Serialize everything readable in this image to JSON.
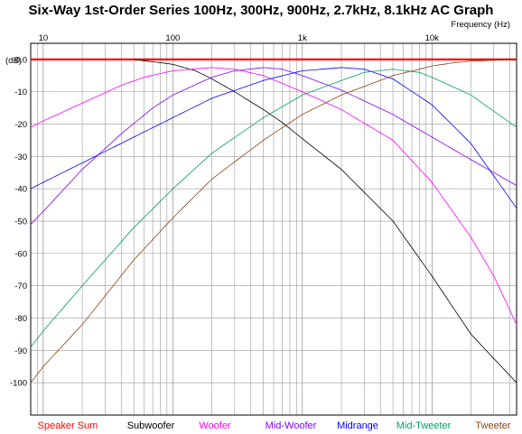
{
  "chart_data": {
    "type": "line",
    "title": "Six-Way 1st-Order Series 100Hz, 300Hz, 900Hz, 2.7kHz, 8.1kHz AC Graph",
    "xlabel": "Frequency   (Hz)",
    "ylabel": "(dB)",
    "x_scale": "log",
    "xlim": [
      8,
      45000
    ],
    "ylim": [
      -110,
      5
    ],
    "grid": true,
    "legend_position": "bottom",
    "x_ticks": [
      {
        "value": 10,
        "label": "10"
      },
      {
        "value": 100,
        "label": "100"
      },
      {
        "value": 1000,
        "label": "1k"
      },
      {
        "value": 10000,
        "label": "10k"
      }
    ],
    "y_ticks": [
      {
        "value": 0,
        "label": "0.0"
      },
      {
        "value": -10,
        "label": "-10"
      },
      {
        "value": -20,
        "label": "-20"
      },
      {
        "value": -30,
        "label": "-30"
      },
      {
        "value": -40,
        "label": "-40"
      },
      {
        "value": -50,
        "label": "-50"
      },
      {
        "value": -60,
        "label": "-60"
      },
      {
        "value": -70,
        "label": "-70"
      },
      {
        "value": -80,
        "label": "-80"
      },
      {
        "value": -90,
        "label": "-90"
      },
      {
        "value": -100,
        "label": "-100"
      }
    ],
    "series": [
      {
        "name": "Speaker Sum",
        "color": "#ff0000",
        "width": 2.2,
        "points": [
          [
            8,
            0
          ],
          [
            45000,
            0
          ]
        ]
      },
      {
        "name": "Subwoofer",
        "color": "#000000",
        "width": 0.8,
        "points": [
          [
            50,
            0
          ],
          [
            80,
            -1
          ],
          [
            100,
            -1.5
          ],
          [
            150,
            -3.5
          ],
          [
            200,
            -6
          ],
          [
            300,
            -10
          ],
          [
            500,
            -15.5
          ],
          [
            700,
            -19.5
          ],
          [
            1000,
            -24.5
          ],
          [
            2000,
            -34
          ],
          [
            5000,
            -50
          ],
          [
            10000,
            -67
          ],
          [
            20000,
            -85
          ],
          [
            45000,
            -100
          ]
        ]
      },
      {
        "name": "Woofer",
        "color": "#ff00ff",
        "width": 0.8,
        "points": [
          [
            8,
            -21
          ],
          [
            10,
            -19
          ],
          [
            20,
            -13.5
          ],
          [
            40,
            -8
          ],
          [
            60,
            -5.5
          ],
          [
            100,
            -3.5
          ],
          [
            200,
            -2.5
          ],
          [
            300,
            -3
          ],
          [
            500,
            -5
          ],
          [
            1000,
            -10
          ],
          [
            2000,
            -15.5
          ],
          [
            5000,
            -25
          ],
          [
            10000,
            -38
          ],
          [
            20000,
            -55
          ],
          [
            30000,
            -67
          ],
          [
            45000,
            -82
          ]
        ]
      },
      {
        "name": "Mid-Woofer",
        "color": "#8000ff",
        "width": 0.8,
        "points": [
          [
            8,
            -51
          ],
          [
            10,
            -47
          ],
          [
            20,
            -34
          ],
          [
            40,
            -23
          ],
          [
            70,
            -15
          ],
          [
            100,
            -11
          ],
          [
            200,
            -5.5
          ],
          [
            300,
            -3.5
          ],
          [
            500,
            -2.5
          ],
          [
            700,
            -3
          ],
          [
            1000,
            -5
          ],
          [
            2000,
            -9.5
          ],
          [
            5000,
            -17
          ],
          [
            10000,
            -24
          ],
          [
            20000,
            -31
          ],
          [
            45000,
            -39
          ]
        ]
      },
      {
        "name": "Midrange",
        "color": "#0000ff",
        "width": 0.8,
        "points": [
          [
            8,
            -40
          ],
          [
            10,
            -38
          ],
          [
            20,
            -32
          ],
          [
            50,
            -24
          ],
          [
            100,
            -18
          ],
          [
            200,
            -12
          ],
          [
            500,
            -6.5
          ],
          [
            1000,
            -3.5
          ],
          [
            2000,
            -2.5
          ],
          [
            3000,
            -3
          ],
          [
            5000,
            -6
          ],
          [
            10000,
            -14
          ],
          [
            20000,
            -26
          ],
          [
            45000,
            -46
          ]
        ]
      },
      {
        "name": "Mid-Tweeter",
        "color": "#00a060",
        "width": 0.8,
        "points": [
          [
            8,
            -89
          ],
          [
            10,
            -84
          ],
          [
            20,
            -70
          ],
          [
            50,
            -52
          ],
          [
            100,
            -40
          ],
          [
            200,
            -29
          ],
          [
            500,
            -18
          ],
          [
            1000,
            -11
          ],
          [
            2000,
            -6.5
          ],
          [
            3000,
            -4
          ],
          [
            5000,
            -3
          ],
          [
            8000,
            -4
          ],
          [
            10000,
            -5.5
          ],
          [
            20000,
            -11
          ],
          [
            45000,
            -21
          ]
        ]
      },
      {
        "name": "Tweeter",
        "color": "#8b4513",
        "width": 0.8,
        "points": [
          [
            8,
            -100
          ],
          [
            10,
            -95
          ],
          [
            20,
            -82
          ],
          [
            50,
            -62
          ],
          [
            100,
            -49
          ],
          [
            200,
            -37
          ],
          [
            500,
            -25
          ],
          [
            1000,
            -17
          ],
          [
            2000,
            -11
          ],
          [
            5000,
            -5
          ],
          [
            8000,
            -3
          ],
          [
            10000,
            -2
          ],
          [
            15000,
            -1
          ],
          [
            20000,
            -0.5
          ],
          [
            45000,
            0
          ]
        ]
      }
    ]
  }
}
